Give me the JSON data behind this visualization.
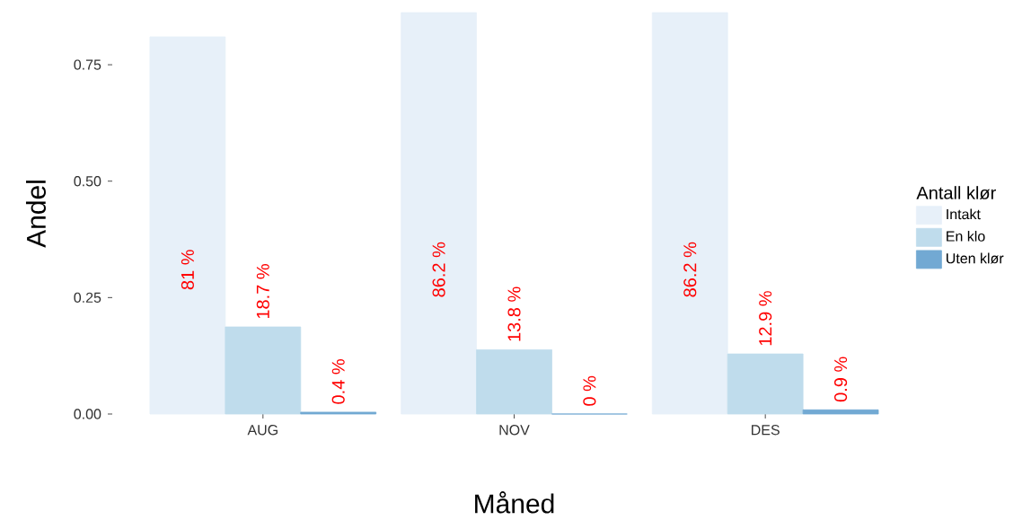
{
  "chart_data": {
    "type": "bar",
    "xlabel": "Måned",
    "ylabel": "Andel",
    "legend_title": "Antall klør",
    "categories": [
      "AUG",
      "NOV",
      "DES"
    ],
    "series": [
      {
        "name": "Intakt",
        "color": "#e7f0f9",
        "values": [
          0.81,
          0.862,
          0.862
        ],
        "value_labels": [
          "81 %",
          "86.2 %",
          "86.2 %"
        ]
      },
      {
        "name": "En klo",
        "color": "#bfdcec",
        "values": [
          0.187,
          0.138,
          0.129
        ],
        "value_labels": [
          "18.7 %",
          "13.8 %",
          "12.9 %"
        ]
      },
      {
        "name": "Uten klør",
        "color": "#72a9d3",
        "values": [
          0.004,
          0,
          0.009
        ],
        "value_labels": [
          "0.4 %",
          "0 %",
          "0.9 %"
        ]
      }
    ],
    "ylim": [
      0,
      0.862
    ],
    "yticks": [
      {
        "value": 0,
        "label": "0.00"
      },
      {
        "value": 0.25,
        "label": "0.25"
      },
      {
        "value": 0.5,
        "label": "0.50"
      },
      {
        "value": 0.75,
        "label": "0.75"
      }
    ],
    "grid": false,
    "legend": "right"
  }
}
